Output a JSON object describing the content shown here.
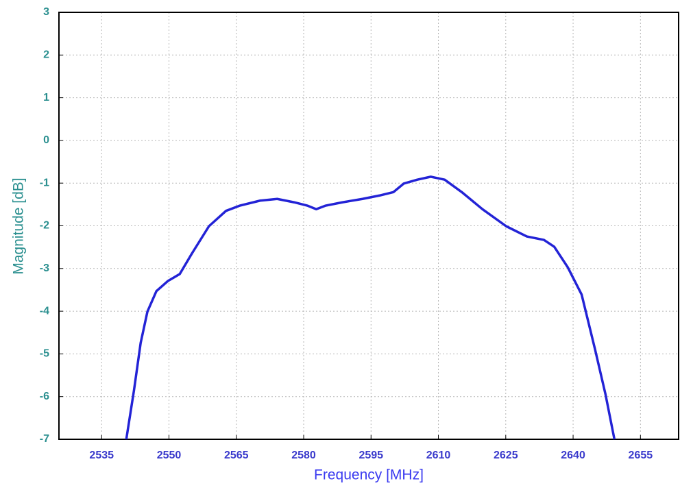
{
  "chart_data": {
    "type": "line",
    "x_label": "Frequency [MHz]",
    "y_label": "Magnitude [dB]",
    "x": [
      2540.5,
      2542.2,
      2543.7,
      2545.2,
      2547.2,
      2549.8,
      2552.4,
      2555.1,
      2558.9,
      2562.7,
      2565.7,
      2570.3,
      2574.1,
      2577.9,
      2580.9,
      2582.8,
      2584.8,
      2588.6,
      2593.1,
      2596.9,
      2600.0,
      2602.3,
      2605.3,
      2608.3,
      2611.4,
      2615.2,
      2619.8,
      2625.1,
      2629.7,
      2633.5,
      2635.8,
      2638.8,
      2641.9,
      2644.9,
      2647.2,
      2649.2
    ],
    "values": [
      -7,
      -5.86,
      -4.74,
      -4.01,
      -3.53,
      -3.29,
      -3.13,
      -2.65,
      -2.01,
      -1.65,
      -1.53,
      -1.41,
      -1.37,
      -1.45,
      -1.53,
      -1.61,
      -1.53,
      -1.45,
      -1.37,
      -1.29,
      -1.21,
      -1.01,
      -0.92,
      -0.85,
      -0.92,
      -1.21,
      -1.61,
      -2.01,
      -2.25,
      -2.33,
      -2.49,
      -2.97,
      -3.61,
      -4.9,
      -5.94,
      -7
    ],
    "color": "#2323d6",
    "xlim": [
      2525.5,
      2663.5
    ],
    "xticks": [
      2535,
      2550,
      2565,
      2580,
      2595,
      2610,
      2625,
      2640,
      2655
    ],
    "ylim": [
      -7,
      3
    ],
    "yticks": [
      -7,
      -6,
      -5,
      -4,
      -3,
      -2,
      -1,
      0,
      1,
      2,
      3
    ],
    "grid": true
  }
}
